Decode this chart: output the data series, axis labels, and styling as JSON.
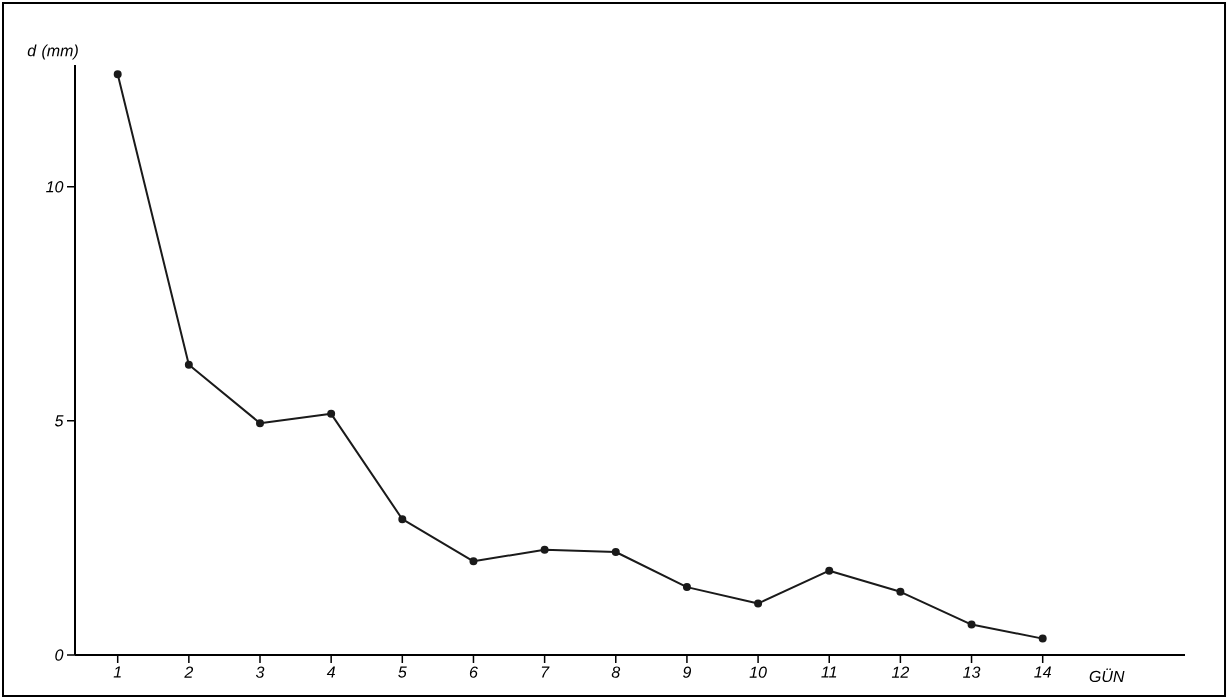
{
  "chart_data": {
    "type": "line",
    "xlabel": "GÜN",
    "ylabel": "d (mm)",
    "x": [
      1,
      2,
      3,
      4,
      5,
      6,
      7,
      8,
      9,
      10,
      11,
      12,
      13,
      14
    ],
    "series": [
      {
        "color": "#1a1a1a",
        "values": [
          12.4,
          6.2,
          4.95,
          5.15,
          2.9,
          2.0,
          2.25,
          2.2,
          1.45,
          1.1,
          1.8,
          1.35,
          0.65,
          0.35
        ]
      }
    ],
    "xlim": [
      0.4,
      16
    ],
    "ylim": [
      0,
      12.6
    ],
    "xticks": [
      1,
      2,
      3,
      4,
      5,
      6,
      7,
      8,
      9,
      10,
      11,
      12,
      13,
      14
    ],
    "yticks": [
      0,
      5,
      10
    ],
    "marker": "circle",
    "line_style": "solid"
  }
}
